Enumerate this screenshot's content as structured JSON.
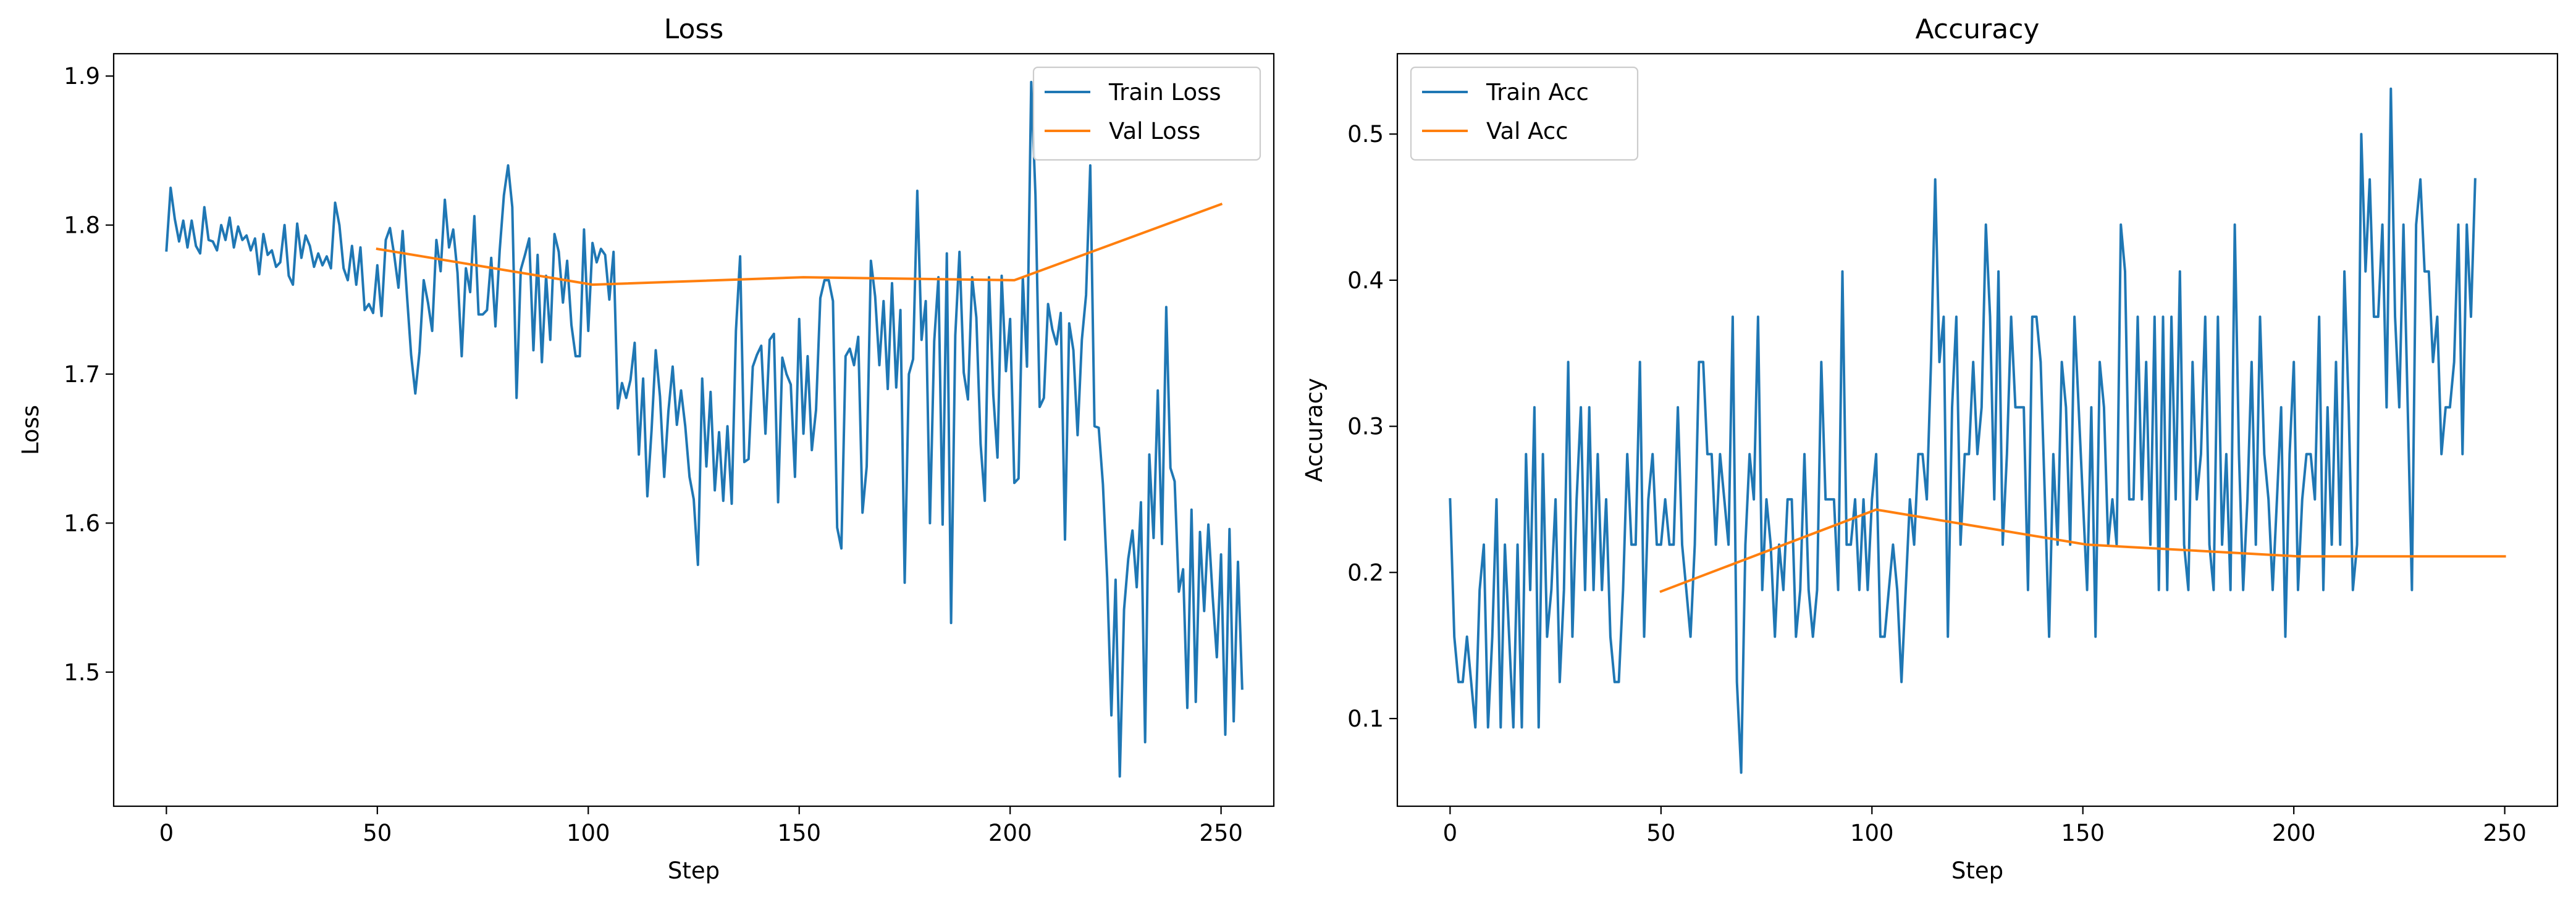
{
  "chart_data": [
    {
      "type": "line",
      "title": "Loss",
      "xlabel": "Step",
      "ylabel": "Loss",
      "xlim": [
        -12.5,
        262.5
      ],
      "ylim": [
        1.41,
        1.915
      ],
      "xticks": [
        0,
        50,
        100,
        150,
        200,
        250
      ],
      "yticks": [
        1.5,
        1.6,
        1.7,
        1.8,
        1.9
      ],
      "ytick_decimals": 1,
      "grid": false,
      "legend": "top-right",
      "series": [
        {
          "name": "Train Loss",
          "color": "#1f77b4",
          "x_start": 0,
          "x_step": 1,
          "values": [
            1.783,
            1.825,
            1.804,
            1.789,
            1.803,
            1.785,
            1.803,
            1.786,
            1.781,
            1.812,
            1.79,
            1.789,
            1.783,
            1.8,
            1.79,
            1.805,
            1.785,
            1.799,
            1.79,
            1.793,
            1.783,
            1.791,
            1.767,
            1.794,
            1.78,
            1.783,
            1.772,
            1.775,
            1.8,
            1.766,
            1.76,
            1.801,
            1.778,
            1.793,
            1.786,
            1.772,
            1.781,
            1.773,
            1.779,
            1.771,
            1.815,
            1.8,
            1.771,
            1.763,
            1.786,
            1.76,
            1.785,
            1.743,
            1.747,
            1.741,
            1.773,
            1.739,
            1.79,
            1.798,
            1.78,
            1.758,
            1.796,
            1.754,
            1.713,
            1.687,
            1.715,
            1.763,
            1.748,
            1.729,
            1.79,
            1.769,
            1.817,
            1.785,
            1.797,
            1.768,
            1.712,
            1.771,
            1.755,
            1.806,
            1.74,
            1.74,
            1.743,
            1.778,
            1.732,
            1.783,
            1.82,
            1.84,
            1.812,
            1.684,
            1.77,
            1.78,
            1.791,
            1.716,
            1.78,
            1.708,
            1.766,
            1.723,
            1.794,
            1.782,
            1.748,
            1.776,
            1.733,
            1.712,
            1.712,
            1.797,
            1.729,
            1.788,
            1.775,
            1.784,
            1.78,
            1.75,
            1.782,
            1.677,
            1.694,
            1.684,
            1.696,
            1.721,
            1.646,
            1.697,
            1.618,
            1.662,
            1.716,
            1.685,
            1.631,
            1.675,
            1.705,
            1.666,
            1.689,
            1.665,
            1.631,
            1.616,
            1.572,
            1.697,
            1.638,
            1.688,
            1.622,
            1.661,
            1.615,
            1.665,
            1.613,
            1.729,
            1.779,
            1.641,
            1.643,
            1.705,
            1.713,
            1.719,
            1.66,
            1.723,
            1.727,
            1.614,
            1.711,
            1.7,
            1.693,
            1.631,
            1.737,
            1.66,
            1.712,
            1.649,
            1.676,
            1.751,
            1.763,
            1.763,
            1.749,
            1.597,
            1.583,
            1.712,
            1.717,
            1.706,
            1.725,
            1.607,
            1.638,
            1.776,
            1.752,
            1.706,
            1.749,
            1.69,
            1.761,
            1.691,
            1.743,
            1.56,
            1.7,
            1.71,
            1.823,
            1.723,
            1.749,
            1.6,
            1.722,
            1.765,
            1.599,
            1.781,
            1.533,
            1.726,
            1.782,
            1.701,
            1.683,
            1.765,
            1.738,
            1.653,
            1.615,
            1.765,
            1.686,
            1.644,
            1.766,
            1.702,
            1.737,
            1.627,
            1.63,
            1.765,
            1.705,
            1.896,
            1.82,
            1.678,
            1.684,
            1.747,
            1.73,
            1.72,
            1.741,
            1.589,
            1.734,
            1.716,
            1.659,
            1.723,
            1.753,
            1.84,
            1.665,
            1.664,
            1.626,
            1.563,
            1.471,
            1.562,
            1.43,
            1.542,
            1.576,
            1.595,
            1.557,
            1.614,
            1.453,
            1.646,
            1.59,
            1.689,
            1.586,
            1.745,
            1.637,
            1.628,
            1.554,
            1.569,
            1.476,
            1.609,
            1.48,
            1.594,
            1.541,
            1.599,
            1.551,
            1.51,
            1.579,
            1.458,
            1.596,
            1.467,
            1.574,
            1.489
          ]
        },
        {
          "name": "Val Loss",
          "color": "#ff7f0e",
          "x": [
            50,
            101,
            151,
            201,
            250
          ],
          "values": [
            1.784,
            1.76,
            1.765,
            1.763,
            1.814
          ]
        }
      ]
    },
    {
      "type": "line",
      "title": "Accuracy",
      "xlabel": "Step",
      "ylabel": "Accuracy",
      "xlim": [
        -12.5,
        262.5
      ],
      "ylim": [
        0.04,
        0.555
      ],
      "xticks": [
        0,
        50,
        100,
        150,
        200,
        250
      ],
      "yticks": [
        0.1,
        0.2,
        0.3,
        0.4,
        0.5
      ],
      "ytick_decimals": 1,
      "grid": false,
      "legend": "top-left",
      "series": [
        {
          "name": "Train Acc",
          "color": "#1f77b4",
          "x_start": 0,
          "x_step": 1,
          "values": [
            0.25,
            0.156,
            0.125,
            0.125,
            0.156,
            0.125,
            0.094,
            0.188,
            0.219,
            0.094,
            0.156,
            0.25,
            0.094,
            0.219,
            0.156,
            0.094,
            0.219,
            0.094,
            0.281,
            0.188,
            0.313,
            0.094,
            0.281,
            0.156,
            0.188,
            0.25,
            0.125,
            0.188,
            0.344,
            0.156,
            0.25,
            0.313,
            0.188,
            0.313,
            0.188,
            0.281,
            0.188,
            0.25,
            0.156,
            0.125,
            0.125,
            0.188,
            0.281,
            0.219,
            0.219,
            0.344,
            0.156,
            0.25,
            0.281,
            0.219,
            0.219,
            0.25,
            0.219,
            0.219,
            0.313,
            0.219,
            0.188,
            0.156,
            0.219,
            0.344,
            0.344,
            0.281,
            0.281,
            0.219,
            0.281,
            0.25,
            0.219,
            0.375,
            0.125,
            0.063,
            0.219,
            0.281,
            0.25,
            0.375,
            0.188,
            0.25,
            0.219,
            0.156,
            0.219,
            0.188,
            0.25,
            0.25,
            0.156,
            0.188,
            0.281,
            0.188,
            0.156,
            0.188,
            0.344,
            0.25,
            0.25,
            0.25,
            0.188,
            0.406,
            0.219,
            0.219,
            0.25,
            0.188,
            0.25,
            0.188,
            0.25,
            0.281,
            0.156,
            0.156,
            0.188,
            0.219,
            0.188,
            0.125,
            0.188,
            0.25,
            0.219,
            0.281,
            0.281,
            0.25,
            0.344,
            0.469,
            0.344,
            0.375,
            0.156,
            0.313,
            0.375,
            0.219,
            0.281,
            0.281,
            0.344,
            0.281,
            0.313,
            0.438,
            0.375,
            0.25,
            0.406,
            0.219,
            0.281,
            0.375,
            0.313,
            0.313,
            0.313,
            0.188,
            0.375,
            0.375,
            0.344,
            0.25,
            0.156,
            0.281,
            0.219,
            0.344,
            0.313,
            0.219,
            0.375,
            0.313,
            0.25,
            0.188,
            0.313,
            0.156,
            0.344,
            0.313,
            0.219,
            0.25,
            0.219,
            0.438,
            0.406,
            0.25,
            0.25,
            0.375,
            0.25,
            0.344,
            0.219,
            0.375,
            0.188,
            0.375,
            0.188,
            0.375,
            0.25,
            0.406,
            0.219,
            0.188,
            0.344,
            0.25,
            0.281,
            0.375,
            0.219,
            0.188,
            0.375,
            0.219,
            0.281,
            0.188,
            0.438,
            0.281,
            0.188,
            0.25,
            0.344,
            0.219,
            0.375,
            0.281,
            0.25,
            0.188,
            0.25,
            0.313,
            0.156,
            0.281,
            0.344,
            0.188,
            0.25,
            0.281,
            0.281,
            0.25,
            0.375,
            0.188,
            0.313,
            0.219,
            0.344,
            0.219,
            0.406,
            0.313,
            0.188,
            0.219,
            0.5,
            0.406,
            0.469,
            0.375,
            0.375,
            0.438,
            0.313,
            0.531,
            0.375,
            0.313,
            0.438,
            0.313,
            0.188,
            0.438,
            0.469,
            0.406,
            0.406,
            0.344,
            0.375,
            0.281,
            0.313,
            0.313,
            0.344,
            0.438,
            0.281,
            0.438,
            0.375,
            0.469
          ]
        },
        {
          "name": "Val Acc",
          "color": "#ff7f0e",
          "x": [
            50,
            101,
            151,
            201,
            250
          ],
          "values": [
            0.187,
            0.243,
            0.219,
            0.211,
            0.211
          ]
        }
      ]
    }
  ]
}
